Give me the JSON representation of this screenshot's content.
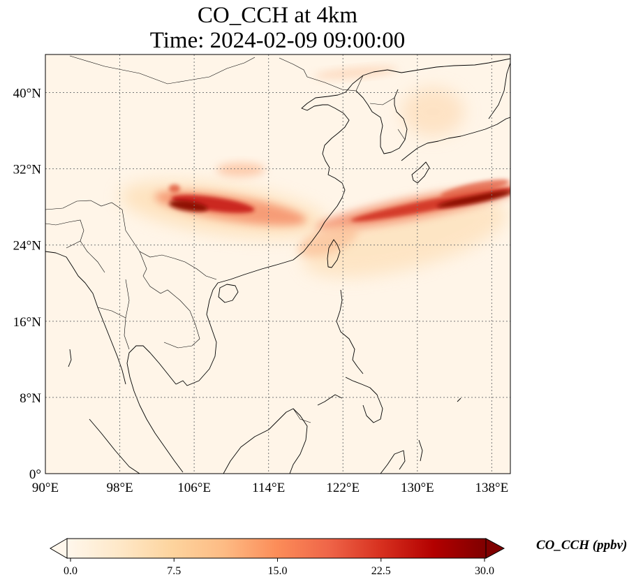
{
  "title": {
    "line1": "CO_CCH at 4km",
    "line2": "Time: 2024-02-09 09:00:00"
  },
  "map": {
    "lon_range": [
      90,
      140
    ],
    "lat_range": [
      0,
      44
    ],
    "lon_ticks": [
      {
        "value": 90,
        "label": "90°E"
      },
      {
        "value": 98,
        "label": "98°E"
      },
      {
        "value": 106,
        "label": "106°E"
      },
      {
        "value": 114,
        "label": "114°E"
      },
      {
        "value": 122,
        "label": "122°E"
      },
      {
        "value": 130,
        "label": "130°E"
      },
      {
        "value": 138,
        "label": "138°E"
      }
    ],
    "lat_ticks": [
      {
        "value": 0,
        "label": "0°"
      },
      {
        "value": 8,
        "label": "8°N"
      },
      {
        "value": 16,
        "label": "16°N"
      },
      {
        "value": 24,
        "label": "24°N"
      },
      {
        "value": 32,
        "label": "32°N"
      },
      {
        "value": 40,
        "label": "40°N"
      }
    ],
    "gridlines": "dotted",
    "colormap": "OrRd",
    "background_color": "#fff5e8",
    "coastline_color": "#000000"
  },
  "colorbar": {
    "label": "CO_CCH (ppbv)",
    "min": 0,
    "max": 30,
    "extend": "both",
    "ticks": [
      {
        "value": 0,
        "label": "0.0"
      },
      {
        "value": 7.5,
        "label": "7.5"
      },
      {
        "value": 15,
        "label": "15.0"
      },
      {
        "value": 22.5,
        "label": "22.5"
      },
      {
        "value": 30,
        "label": "30.0"
      }
    ],
    "colors": [
      "#fff7ec",
      "#fee8c8",
      "#fdd49e",
      "#fdbb84",
      "#fc8d59",
      "#ef6548",
      "#d7301f",
      "#b30000",
      "#7f0000"
    ]
  }
}
